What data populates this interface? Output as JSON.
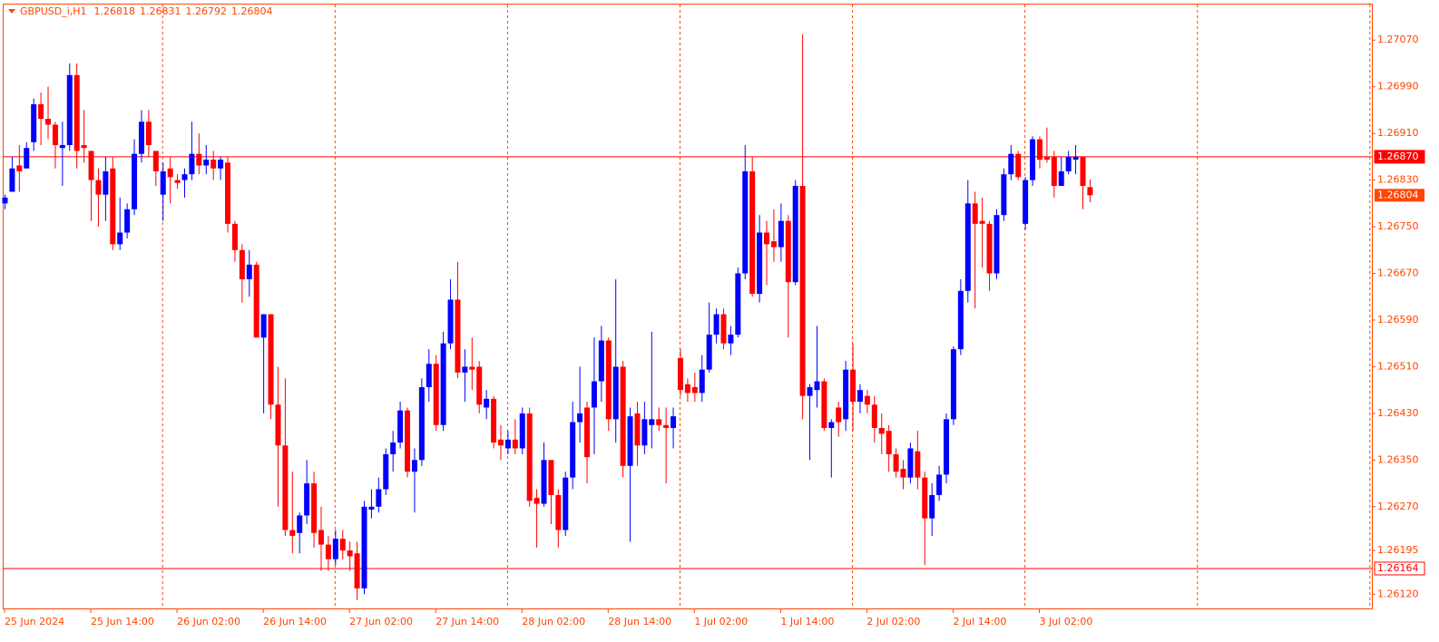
{
  "chart_data": {
    "type": "candlestick",
    "title": "GBPUSD_i,H1",
    "up_color": "#0000ff",
    "down_color": "#ff0000",
    "axis_color": "#ff4500",
    "ylim": [
      1.26094,
      1.27131
    ],
    "yticks": [
      {
        "value": 1.2707,
        "label": "1.27070"
      },
      {
        "value": 1.2699,
        "label": "1.26990"
      },
      {
        "value": 1.2691,
        "label": "1.26910"
      },
      {
        "value": 1.2683,
        "label": "1.26830"
      },
      {
        "value": 1.2675,
        "label": "1.26750"
      },
      {
        "value": 1.2667,
        "label": "1.26670"
      },
      {
        "value": 1.2659,
        "label": "1.26590"
      },
      {
        "value": 1.2651,
        "label": "1.26510"
      },
      {
        "value": 1.2643,
        "label": "1.26430"
      },
      {
        "value": 1.2635,
        "label": "1.26350"
      },
      {
        "value": 1.2627,
        "label": "1.26270"
      },
      1.26195,
      {
        "value": 1.2612,
        "label": "1.26120"
      }
    ],
    "grid": false,
    "hlines": [
      {
        "value": 1.2687,
        "label": "1.26870"
      },
      1.26164
    ],
    "categories": [
      "25 Jun 2024",
      null,
      null,
      null,
      null,
      null,
      null,
      null,
      null,
      null,
      null,
      null,
      "25 Jun 14:00",
      null,
      null,
      null,
      null,
      null,
      null,
      null,
      null,
      null,
      null,
      null,
      "26 Jun 02:00",
      null,
      null,
      null,
      null,
      null,
      null,
      null,
      null,
      null,
      null,
      null,
      "26 Jun 14:00",
      null,
      null,
      null,
      null,
      null,
      null,
      null,
      null,
      null,
      null,
      null,
      "27 Jun 02:00",
      null,
      null,
      null,
      null,
      null,
      null,
      null,
      null,
      null,
      null,
      null,
      "27 Jun 14:00",
      null,
      null,
      null,
      null,
      null,
      null,
      null,
      null,
      null,
      null,
      null,
      "28 Jun 02:00",
      null,
      null,
      null,
      null,
      null,
      null,
      null,
      null,
      null,
      null,
      null,
      "28 Jun 14:00",
      null,
      null,
      null,
      null,
      null,
      null,
      null,
      null,
      null,
      null,
      null,
      "1 Jul 02:00",
      null,
      null,
      null,
      null,
      null,
      null,
      null,
      null,
      null,
      null,
      null,
      "1 Jul 14:00",
      null,
      null,
      null,
      null,
      null,
      null,
      null,
      null,
      null,
      null,
      null,
      "2 Jul 02:00",
      null,
      null,
      null,
      null,
      null,
      null,
      null,
      null,
      null,
      null,
      null,
      "2 Jul 14:00",
      null,
      null,
      null,
      null,
      null,
      null,
      null,
      null,
      null,
      null,
      null,
      "3 Jul 02:00",
      null,
      null,
      null,
      null,
      null,
      null,
      null
    ],
    "open": [
      1.2679,
      1.2681,
      1.26855,
      1.2685,
      1.26895,
      1.2696,
      1.26935,
      1.26925,
      1.26885,
      1.2689,
      1.2701,
      1.2689,
      1.2688,
      1.2683,
      1.26805,
      1.2685,
      1.2672,
      1.2674,
      1.2678,
      1.26875,
      1.2693,
      1.2688,
      1.26805,
      1.2685,
      1.2683,
      1.2683,
      1.2684,
      1.26875,
      1.26855,
      1.26865,
      1.2685,
      1.2686,
      1.26755,
      1.2671,
      1.2666,
      1.26685,
      1.2656,
      1.266,
      1.26445,
      1.26375,
      1.2623,
      1.26225,
      1.26255,
      1.2631,
      1.2623,
      1.26205,
      1.2618,
      1.26215,
      1.26195,
      1.2619,
      1.2613,
      1.26265,
      1.2627,
      1.263,
      1.2636,
      1.2638,
      1.26435,
      1.2633,
      1.2635,
      1.26475,
      1.26515,
      1.2641,
      1.2655,
      1.26625,
      1.265,
      1.2651,
      1.2651,
      1.2644,
      1.26455,
      1.26385,
      1.2637,
      1.26385,
      1.2637,
      1.2643,
      1.26285,
      1.26275,
      1.2635,
      1.2629,
      1.2623,
      1.2632,
      1.26415,
      1.2644,
      1.2644,
      1.26485,
      1.26555,
      1.2642,
      1.2651,
      1.2634,
      1.2643,
      1.26375,
      1.2641,
      1.2642,
      1.2641,
      1.26405,
      1.26525,
      1.2648,
      1.26475,
      1.26465,
      1.26505,
      1.26565,
      1.266,
      1.2655,
      1.26565,
      1.2667,
      1.26845,
      1.26635,
      1.2674,
      1.26725,
      1.26715,
      1.2676,
      1.26655,
      1.2682,
      1.2646,
      1.2647,
      1.26485,
      1.26405,
      1.2644,
      1.2642,
      1.26505,
      1.2645,
      1.2646,
      1.26445,
      1.26405,
      1.264,
      1.2636,
      1.26335,
      1.2632,
      1.26365,
      1.2632,
      1.2625,
      1.2629,
      1.26325,
      1.2642,
      1.2654,
      1.2664,
      1.2679,
      1.2676,
      1.26755,
      1.2667,
      1.2677,
      1.2684,
      1.26875,
      1.26755,
      1.2683,
      1.269,
      1.2687,
      1.2687,
      1.2682,
      1.26845,
      1.26865,
      1.2687,
      1.26818
    ],
    "high": [
      1.26805,
      1.2687,
      1.2689,
      1.26895,
      1.2697,
      1.2698,
      1.2699,
      1.2693,
      1.2693,
      1.2703,
      1.2703,
      1.2695,
      1.2688,
      1.2685,
      1.2687,
      1.2687,
      1.268,
      1.2679,
      1.269,
      1.2695,
      1.2695,
      1.2688,
      1.2686,
      1.2687,
      1.2684,
      1.2685,
      1.2693,
      1.2691,
      1.2689,
      1.2688,
      1.2687,
      1.2687,
      1.2676,
      1.2672,
      1.2671,
      1.2669,
      1.266,
      1.266,
      1.2651,
      1.2649,
      1.2633,
      1.2626,
      1.2635,
      1.2633,
      1.2627,
      1.2622,
      1.2623,
      1.2623,
      1.2621,
      1.2621,
      1.2628,
      1.263,
      1.2632,
      1.2637,
      1.264,
      1.2645,
      1.2644,
      1.2637,
      1.2649,
      1.2654,
      1.2653,
      1.2657,
      1.2666,
      1.2669,
      1.2654,
      1.2656,
      1.2652,
      1.2647,
      1.2646,
      1.2641,
      1.264,
      1.2642,
      1.2644,
      1.2644,
      1.263,
      1.2638,
      1.2635,
      1.263,
      1.2633,
      1.2645,
      1.2651,
      1.2645,
      1.2656,
      1.2658,
      1.2656,
      1.2666,
      1.2652,
      1.2644,
      1.2645,
      1.2645,
      1.2657,
      1.2644,
      1.2644,
      1.2644,
      1.2654,
      1.2649,
      1.265,
      1.2653,
      1.2662,
      1.2661,
      1.2661,
      1.2658,
      1.2668,
      1.2689,
      1.2687,
      1.2677,
      1.2676,
      1.2678,
      1.2679,
      1.2677,
      1.2683,
      1.2708,
      1.2648,
      1.2658,
      1.2649,
      1.2642,
      1.2645,
      1.2652,
      1.2655,
      1.2648,
      1.2647,
      1.2646,
      1.2643,
      1.2641,
      1.2637,
      1.2635,
      1.2638,
      1.264,
      1.2633,
      1.2631,
      1.2634,
      1.2643,
      1.26545,
      1.2666,
      1.2683,
      1.2681,
      1.268,
      1.2676,
      1.2678,
      1.2685,
      1.2689,
      1.2688,
      1.26835,
      1.26905,
      1.26905,
      1.2692,
      1.2688,
      1.2687,
      1.2688,
      1.2689,
      1.2687,
      1.26831
    ],
    "low": [
      1.2678,
      1.2681,
      1.2681,
      1.2685,
      1.2688,
      1.2689,
      1.269,
      1.2685,
      1.2682,
      1.2688,
      1.2685,
      1.2686,
      1.2676,
      1.2675,
      1.2676,
      1.2671,
      1.2671,
      1.2673,
      1.2677,
      1.2686,
      1.2687,
      1.2682,
      1.2676,
      1.2679,
      1.26815,
      1.268,
      1.2683,
      1.2684,
      1.2684,
      1.2683,
      1.2683,
      1.2674,
      1.2669,
      1.2662,
      1.2663,
      1.2656,
      1.2643,
      1.2642,
      1.2627,
      1.2622,
      1.2619,
      1.2619,
      1.2624,
      1.262,
      1.2616,
      1.2616,
      1.2617,
      1.2618,
      1.2616,
      1.2611,
      1.2612,
      1.2625,
      1.2626,
      1.2629,
      1.2633,
      1.2637,
      1.2632,
      1.2626,
      1.2634,
      1.2645,
      1.264,
      1.264,
      1.2654,
      1.2649,
      1.2645,
      1.2647,
      1.2643,
      1.2642,
      1.2637,
      1.2635,
      1.2636,
      1.2636,
      1.2636,
      1.2627,
      1.262,
      1.2627,
      1.2624,
      1.262,
      1.2622,
      1.263,
      1.2638,
      1.2631,
      1.2636,
      1.2645,
      1.264,
      1.2638,
      1.2632,
      1.2621,
      1.2634,
      1.2636,
      1.2637,
      1.264,
      1.2631,
      1.2637,
      1.2646,
      1.2645,
      1.2645,
      1.2645,
      1.265,
      1.2655,
      1.2654,
      1.2653,
      1.2656,
      1.2666,
      1.2663,
      1.2662,
      1.2665,
      1.2669,
      1.2669,
      1.2656,
      1.2665,
      1.2642,
      1.2635,
      1.2644,
      1.264,
      1.2632,
      1.2639,
      1.264,
      1.264,
      1.2643,
      1.2643,
      1.2638,
      1.2636,
      1.2633,
      1.2632,
      1.263,
      1.2631,
      1.263,
      1.2617,
      1.2622,
      1.2628,
      1.2631,
      1.2641,
      1.2653,
      1.2662,
      1.2661,
      1.2668,
      1.2664,
      1.2666,
      1.2676,
      1.2683,
      1.2683,
      1.26745,
      1.2682,
      1.2685,
      1.2686,
      1.268,
      1.2682,
      1.2684,
      1.2684,
      1.2678,
      1.26792
    ],
    "close": [
      1.268,
      1.2685,
      1.26845,
      1.26885,
      1.2696,
      1.26935,
      1.26925,
      1.2689,
      1.2689,
      1.2701,
      1.2688,
      1.26885,
      1.2683,
      1.26805,
      1.26845,
      1.2672,
      1.2674,
      1.2678,
      1.26875,
      1.2693,
      1.2689,
      1.26845,
      1.26845,
      1.26835,
      1.26825,
      1.2684,
      1.26875,
      1.26855,
      1.26865,
      1.2685,
      1.26865,
      1.26755,
      1.2671,
      1.2666,
      1.26685,
      1.2656,
      1.266,
      1.26445,
      1.26375,
      1.2623,
      1.2622,
      1.26255,
      1.2631,
      1.26225,
      1.26205,
      1.2618,
      1.26215,
      1.26195,
      1.26185,
      1.2613,
      1.2627,
      1.2627,
      1.263,
      1.2636,
      1.2638,
      1.26435,
      1.2633,
      1.2635,
      1.26475,
      1.26515,
      1.2641,
      1.2655,
      1.26625,
      1.265,
      1.2651,
      1.26505,
      1.26445,
      1.26455,
      1.2638,
      1.26375,
      1.26385,
      1.2637,
      1.2643,
      1.2628,
      1.26275,
      1.2635,
      1.2629,
      1.2623,
      1.2632,
      1.26415,
      1.2643,
      1.26355,
      1.26485,
      1.26555,
      1.2642,
      1.2651,
      1.2634,
      1.26425,
      1.26375,
      1.2642,
      1.2642,
      1.2641,
      1.26405,
      1.26425,
      1.2647,
      1.26465,
      1.26465,
      1.26505,
      1.26565,
      1.266,
      1.2655,
      1.26565,
      1.2667,
      1.26845,
      1.26635,
      1.2674,
      1.2672,
      1.26715,
      1.2676,
      1.26655,
      1.2682,
      1.2646,
      1.26475,
      1.26485,
      1.26405,
      1.26415,
      1.26415,
      1.26505,
      1.2645,
      1.2647,
      1.26445,
      1.26405,
      1.26395,
      1.2636,
      1.2633,
      1.2632,
      1.2637,
      1.2632,
      1.2625,
      1.2629,
      1.26325,
      1.2642,
      1.2654,
      1.2664,
      1.2679,
      1.26755,
      1.26755,
      1.2667,
      1.2677,
      1.2684,
      1.26875,
      1.26835,
      1.2683,
      1.269,
      1.26865,
      1.26865,
      1.2682,
      1.26845,
      1.2687,
      1.2687,
      1.2682,
      1.26804
    ]
  }
}
